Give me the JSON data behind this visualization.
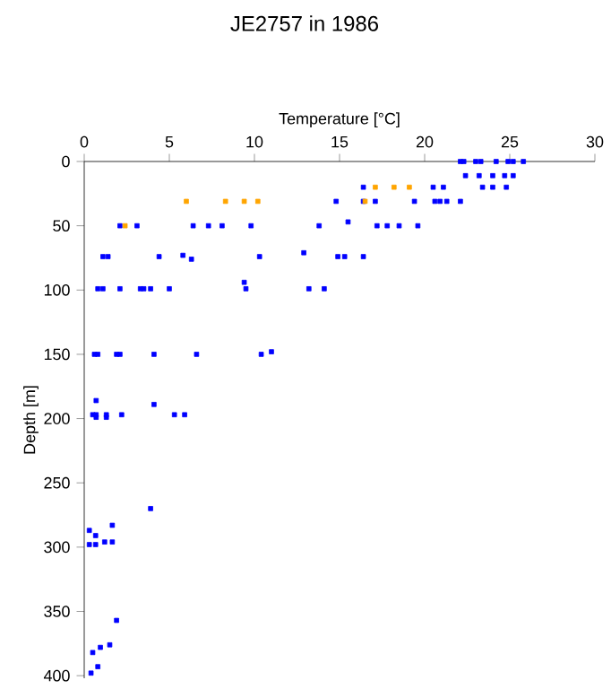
{
  "chart_data": {
    "type": "scatter",
    "title": "JE2757 in 1986",
    "xlabel": "Temperature [°C]",
    "ylabel": "Depth [m]",
    "xlim": [
      0,
      30
    ],
    "xticks": [
      0,
      5,
      10,
      15,
      20,
      25,
      30
    ],
    "ylim": [
      402,
      0
    ],
    "yticks": [
      0,
      50,
      100,
      150,
      200,
      250,
      300,
      350,
      400
    ],
    "marker": "square",
    "series": [
      {
        "color": "#0000ff",
        "x": [
          22.1,
          22.3,
          23.0,
          23.3,
          24.2,
          24.9,
          25.2,
          25.8,
          22.4,
          23.2,
          24.0,
          24.7,
          25.2,
          23.4,
          24.0,
          24.8,
          16.4,
          20.5,
          21.1,
          14.8,
          16.4,
          17.1,
          19.4,
          20.6,
          20.9,
          21.3,
          22.1,
          15.5,
          2.1,
          3.1,
          6.4,
          7.3,
          8.1,
          9.8,
          13.8,
          17.2,
          17.8,
          18.5,
          19.6,
          12.9,
          5.8,
          1.1,
          1.4,
          4.4,
          10.3,
          14.9,
          15.3,
          16.4,
          6.3,
          9.4,
          0.8,
          1.1,
          2.1,
          3.3,
          3.5,
          3.9,
          5.0,
          9.5,
          13.2,
          14.1,
          0.6,
          0.8,
          1.9,
          2.1,
          4.1,
          6.6,
          10.4,
          11.0,
          0.7,
          4.1,
          0.5,
          0.7,
          1.3,
          2.2,
          5.3,
          5.9,
          0.7,
          1.3,
          3.9,
          1.65,
          0.3,
          0.67,
          1.2,
          1.65,
          0.3,
          0.67,
          1.9,
          1.5,
          0.95,
          0.5,
          0.8,
          0.4
        ],
        "values": [
          0,
          0,
          0,
          0,
          0,
          0,
          0,
          0,
          11,
          11,
          11,
          11,
          11,
          20,
          20,
          20,
          20,
          20,
          20,
          31,
          31,
          31,
          31,
          31,
          31,
          31,
          31,
          47,
          50,
          50,
          50,
          50,
          50,
          50,
          50,
          50,
          50,
          50,
          50,
          71,
          73,
          74,
          74,
          74,
          74,
          74,
          74,
          74,
          76,
          94,
          99,
          99,
          99,
          99,
          99,
          99,
          99,
          99,
          99,
          99,
          150,
          150,
          150,
          150,
          150,
          150,
          150,
          148,
          186,
          189,
          197,
          197,
          197,
          197,
          197,
          197,
          199,
          199,
          270,
          283,
          287,
          291,
          296,
          296,
          298,
          298,
          357,
          376,
          378,
          382,
          393,
          398
        ]
      },
      {
        "color": "#ffa500",
        "x": [
          17.1,
          18.2,
          19.1,
          6.0,
          8.3,
          9.4,
          10.2,
          16.5,
          2.4
        ],
        "values": [
          20,
          20,
          20,
          31,
          31,
          31,
          31,
          31,
          50
        ]
      }
    ]
  }
}
